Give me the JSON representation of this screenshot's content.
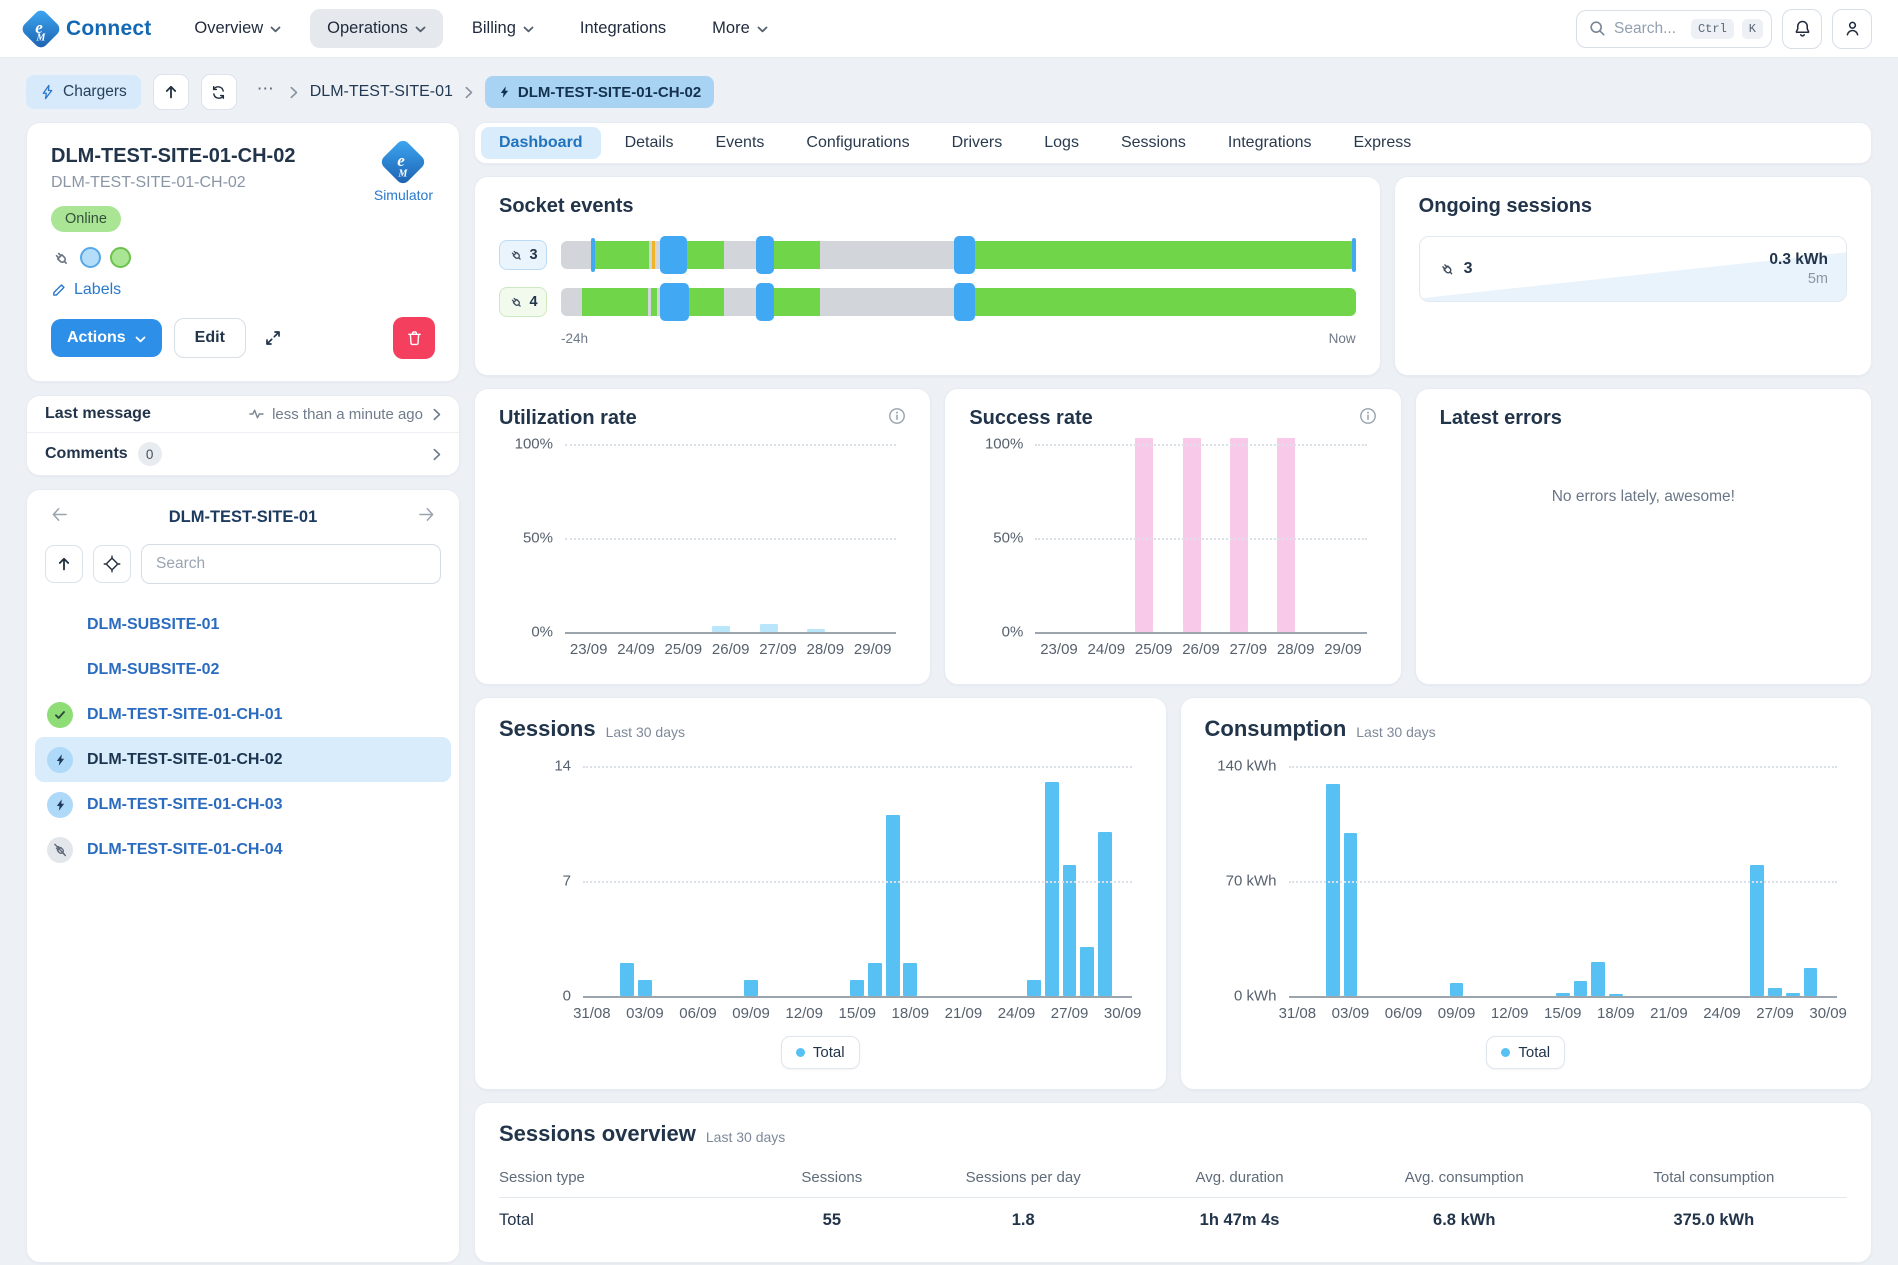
{
  "nav": {
    "brand": "Connect",
    "items": [
      {
        "label": "Overview",
        "caret": true,
        "active": false
      },
      {
        "label": "Operations",
        "caret": true,
        "active": true
      },
      {
        "label": "Billing",
        "caret": true,
        "active": false
      },
      {
        "label": "Integrations",
        "caret": false,
        "active": false
      },
      {
        "label": "More",
        "caret": true,
        "active": false
      }
    ],
    "search": {
      "placeholder": "Search...",
      "keys": [
        "Ctrl",
        "K"
      ]
    }
  },
  "breadcrumb": {
    "root_chip": "Chargers",
    "ellipsis": "⋯",
    "site": "DLM-TEST-SITE-01",
    "current_chip": "DLM-TEST-SITE-01-CH-02"
  },
  "charger": {
    "title": "DLM-TEST-SITE-01-CH-02",
    "code": "DLM-TEST-SITE-01-CH-02",
    "status": "Online",
    "vendor": "Simulator",
    "labels_link": "Labels",
    "actions_button": "Actions",
    "edit_button": "Edit"
  },
  "meta": {
    "last_message_label": "Last message",
    "last_message_value": "less than a minute ago",
    "comments_label": "Comments",
    "comments_count": "0"
  },
  "tree": {
    "title": "DLM-TEST-SITE-01",
    "search_placeholder": "Search",
    "items": [
      {
        "label": "DLM-SUBSITE-01",
        "icon": "none",
        "selected": false
      },
      {
        "label": "DLM-SUBSITE-02",
        "icon": "none",
        "selected": false
      },
      {
        "label": "DLM-TEST-SITE-01-CH-01",
        "icon": "check",
        "selected": false
      },
      {
        "label": "DLM-TEST-SITE-01-CH-02",
        "icon": "bolt",
        "selected": true
      },
      {
        "label": "DLM-TEST-SITE-01-CH-03",
        "icon": "bolt",
        "selected": false
      },
      {
        "label": "DLM-TEST-SITE-01-CH-04",
        "icon": "plug-off",
        "selected": false
      }
    ]
  },
  "tabs": {
    "items": [
      "Dashboard",
      "Details",
      "Events",
      "Configurations",
      "Drivers",
      "Logs",
      "Sessions",
      "Integrations",
      "Express"
    ],
    "active": "Dashboard"
  },
  "socket_events": {
    "title": "Socket events",
    "axis_start": "-24h",
    "axis_end": "Now",
    "rows": [
      {
        "connector": "3",
        "chip_style": "blue",
        "segments": [
          {
            "t": "vline-blue",
            "s": 3.8,
            "w": 0.45
          },
          {
            "t": "green",
            "s": 4.3,
            "w": 6.8
          },
          {
            "t": "vline-yellow",
            "s": 11.5,
            "w": 0.35
          },
          {
            "t": "block-blue",
            "s": 12.4,
            "w": 3.5
          },
          {
            "t": "green",
            "s": 15.9,
            "w": 4.6
          },
          {
            "t": "block-blue",
            "s": 24.6,
            "w": 2.2
          },
          {
            "t": "green",
            "s": 26.8,
            "w": 5.8
          },
          {
            "t": "block-blue",
            "s": 49.5,
            "w": 2.6
          },
          {
            "t": "green",
            "s": 52.1,
            "w": 47.4
          },
          {
            "t": "vline-blue",
            "s": 99.55,
            "w": 0.45
          }
        ]
      },
      {
        "connector": "4",
        "chip_style": "green",
        "segments": [
          {
            "t": "green",
            "s": 2.7,
            "w": 8.2
          },
          {
            "t": "green",
            "s": 11.3,
            "w": 0.8
          },
          {
            "t": "block-blue",
            "s": 12.4,
            "w": 3.7
          },
          {
            "t": "green",
            "s": 16.1,
            "w": 4.4
          },
          {
            "t": "block-blue",
            "s": 24.6,
            "w": 2.2
          },
          {
            "t": "green",
            "s": 26.8,
            "w": 5.8
          },
          {
            "t": "block-blue",
            "s": 49.5,
            "w": 2.6
          },
          {
            "t": "green",
            "s": 52.1,
            "w": 47.9
          }
        ]
      }
    ]
  },
  "ongoing": {
    "title": "Ongoing sessions",
    "connector": "3",
    "energy": "0.3 kWh",
    "duration": "5m"
  },
  "errors": {
    "title": "Latest errors",
    "empty": "No errors lately, awesome!"
  },
  "chart_data": [
    {
      "id": "utilization",
      "type": "bar",
      "title": "Utilization rate",
      "categories": [
        "23/09",
        "24/09",
        "25/09",
        "26/09",
        "27/09",
        "28/09",
        "29/09"
      ],
      "values": [
        0,
        0,
        0,
        3,
        4,
        1.5,
        0
      ],
      "ylim": [
        0,
        100
      ],
      "ymax": 100,
      "y_ticks": [
        {
          "label": "100%",
          "v": 100
        },
        {
          "label": "50%",
          "v": 50
        },
        {
          "label": "0%",
          "v": 0
        }
      ],
      "bar_color": "#B9E6FB",
      "bar_frac": 0.38,
      "bar_offset": -0.2,
      "ylabel": "%",
      "grid": "dotted"
    },
    {
      "id": "success",
      "type": "bar",
      "title": "Success rate",
      "categories": [
        "23/09",
        "24/09",
        "25/09",
        "26/09",
        "27/09",
        "28/09",
        "29/09"
      ],
      "values": [
        0,
        0,
        100,
        100,
        100,
        100,
        0
      ],
      "ylim": [
        0,
        100
      ],
      "ymax": 100,
      "y_ticks": [
        {
          "label": "100%",
          "v": 100
        },
        {
          "label": "50%",
          "v": 50
        },
        {
          "label": "0%",
          "v": 0
        }
      ],
      "bar_color": "#F8C9E9",
      "bar_frac": 0.38,
      "bar_offset": -0.2,
      "bar_extend_pct": 3,
      "ylabel": "%",
      "grid": "dotted"
    },
    {
      "id": "sessions",
      "type": "bar",
      "title": "Sessions",
      "subtitle": "Last 30 days",
      "legend": "Total",
      "n_slots": 31,
      "x_tick_every": 3,
      "x_tick_labels": [
        "31/08",
        "03/09",
        "06/09",
        "09/09",
        "12/09",
        "15/09",
        "18/09",
        "21/09",
        "24/09",
        "27/09",
        "30/09"
      ],
      "points": [
        {
          "date": "02/09",
          "slot": 2,
          "value": 2
        },
        {
          "date": "03/09",
          "slot": 3,
          "value": 1
        },
        {
          "date": "09/09",
          "slot": 9,
          "value": 1
        },
        {
          "date": "15/09",
          "slot": 15,
          "value": 1
        },
        {
          "date": "16/09",
          "slot": 16,
          "value": 2
        },
        {
          "date": "17/09",
          "slot": 17,
          "value": 11
        },
        {
          "date": "18/09",
          "slot": 18,
          "value": 2
        },
        {
          "date": "25/09",
          "slot": 25,
          "value": 1
        },
        {
          "date": "26/09",
          "slot": 26,
          "value": 13
        },
        {
          "date": "27/09",
          "slot": 27,
          "value": 8
        },
        {
          "date": "28/09",
          "slot": 28,
          "value": 3
        },
        {
          "date": "29/09",
          "slot": 29,
          "value": 10
        }
      ],
      "ylim": [
        0,
        14
      ],
      "ymax": 14,
      "y_ticks": [
        {
          "label": "14",
          "v": 14
        },
        {
          "label": "7",
          "v": 7
        },
        {
          "label": "0",
          "v": 0
        }
      ],
      "bar_color": "#57C1F4",
      "bar_frac": 0.78,
      "bar_offset": 0,
      "grid": "dotted"
    },
    {
      "id": "consumption",
      "type": "bar",
      "title": "Consumption",
      "subtitle": "Last 30 days",
      "legend": "Total",
      "n_slots": 31,
      "x_tick_every": 3,
      "x_tick_labels": [
        "31/08",
        "03/09",
        "06/09",
        "09/09",
        "12/09",
        "15/09",
        "18/09",
        "21/09",
        "24/09",
        "27/09",
        "30/09"
      ],
      "points": [
        {
          "date": "02/09",
          "slot": 2,
          "value": 129
        },
        {
          "date": "03/09",
          "slot": 3,
          "value": 99
        },
        {
          "date": "09/09",
          "slot": 9,
          "value": 8
        },
        {
          "date": "15/09",
          "slot": 15,
          "value": 2
        },
        {
          "date": "16/09",
          "slot": 16,
          "value": 9
        },
        {
          "date": "17/09",
          "slot": 17,
          "value": 21
        },
        {
          "date": "18/09",
          "slot": 18,
          "value": 1
        },
        {
          "date": "26/09",
          "slot": 26,
          "value": 80
        },
        {
          "date": "27/09",
          "slot": 27,
          "value": 5
        },
        {
          "date": "28/09",
          "slot": 28,
          "value": 2
        },
        {
          "date": "29/09",
          "slot": 29,
          "value": 17
        }
      ],
      "ylim": [
        0,
        140
      ],
      "ymax": 140,
      "y_ticks": [
        {
          "label": "140 kWh",
          "v": 140
        },
        {
          "label": "70 kWh",
          "v": 70
        },
        {
          "label": "0 kWh",
          "v": 0
        }
      ],
      "bar_color": "#57C1F4",
      "bar_frac": 0.78,
      "bar_offset": 0,
      "grid": "dotted"
    }
  ],
  "overview": {
    "title": "Sessions overview",
    "subtitle": "Last 30 days",
    "columns": [
      "Session type",
      "Sessions",
      "Sessions per day",
      "Avg. duration",
      "Avg. consumption",
      "Total consumption"
    ],
    "rows": [
      [
        "Total",
        "55",
        "1.8",
        "1h 47m 4s",
        "6.8 kWh",
        "375.0 kWh"
      ]
    ]
  },
  "colors": {
    "accent_blue": "#2E8FE8",
    "active_tab_bg": "#D8ECFC",
    "online_green": "#A9E595",
    "timeline_green": "#70D549",
    "timeline_blue": "#41A8F3",
    "timeline_gray": "#D2D6DB",
    "bar_sky": "#57C1F4",
    "bar_pale_blue": "#B9E6FB",
    "bar_pink": "#F8C9E9",
    "danger": "#F43F5E"
  }
}
